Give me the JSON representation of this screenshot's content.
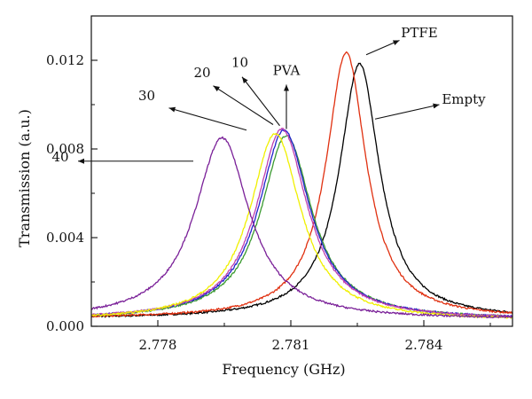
{
  "chart_data": {
    "type": "line",
    "xlabel": "Frequency (GHz)",
    "ylabel": "Transmission (a.u.)",
    "xlim": [
      2.7765,
      2.786
    ],
    "ylim": [
      0.0,
      0.014
    ],
    "x_ticks": [
      2.778,
      2.781,
      2.784
    ],
    "x_tick_labels": [
      "2.778",
      "2.781",
      "2.784"
    ],
    "y_ticks": [
      0.0,
      0.004,
      0.008,
      0.012
    ],
    "y_tick_labels": [
      "0.000",
      "0.004",
      "0.008",
      "0.012"
    ],
    "grid": false,
    "legend": "none",
    "series": [
      {
        "name": "Empty",
        "color": "#000000",
        "peak_x": 2.78255,
        "peak_y": 0.01185,
        "hwhm": 0.00055,
        "base": 0.00035
      },
      {
        "name": "PTFE",
        "color": "#e03010",
        "peak_x": 2.78225,
        "peak_y": 0.01235,
        "hwhm": 0.00055,
        "base": 0.00035
      },
      {
        "name": "PVA",
        "color": "#3a9a30",
        "peak_x": 2.7809,
        "peak_y": 0.0086,
        "hwhm": 0.0007,
        "base": 0.0003
      },
      {
        "name": "10",
        "color": "#2222cc",
        "peak_x": 2.78085,
        "peak_y": 0.00885,
        "hwhm": 0.0007,
        "base": 0.0003
      },
      {
        "name": "20",
        "color": "#c040b0",
        "peak_x": 2.7808,
        "peak_y": 0.0089,
        "hwhm": 0.0007,
        "base": 0.0003
      },
      {
        "name": "30",
        "color": "#f0f000",
        "peak_x": 2.78065,
        "peak_y": 0.0087,
        "hwhm": 0.0007,
        "base": 0.00025
      },
      {
        "name": "40",
        "color": "#7a2098",
        "peak_x": 2.77945,
        "peak_y": 0.0085,
        "hwhm": 0.00075,
        "base": 0.0003
      }
    ],
    "annotations": [
      {
        "text": "PTFE",
        "x": 2.7839,
        "y": 0.01305,
        "arrow_to_x": 2.7827,
        "arrow_to_y": 0.01225
      },
      {
        "text": "Empty",
        "x": 2.7849,
        "y": 0.01005,
        "arrow_to_x": 2.7829,
        "arrow_to_y": 0.00935
      },
      {
        "text": "PVA",
        "x": 2.7809,
        "y": 0.01135,
        "arrow_to_x": 2.7809,
        "arrow_to_y": 0.0091
      },
      {
        "text": "10",
        "x": 2.77985,
        "y": 0.0117,
        "arrow_to_x": 2.78075,
        "arrow_to_y": 0.0092
      },
      {
        "text": "20",
        "x": 2.779,
        "y": 0.01125,
        "arrow_to_x": 2.7806,
        "arrow_to_y": 0.00925
      },
      {
        "text": "30",
        "x": 2.77775,
        "y": 0.0102,
        "arrow_to_x": 2.78,
        "arrow_to_y": 0.0089
      },
      {
        "text": "40",
        "x": 2.7758,
        "y": 0.00745,
        "arrow_to_x": 2.7779,
        "arrow_to_y": 0.00745
      }
    ]
  }
}
